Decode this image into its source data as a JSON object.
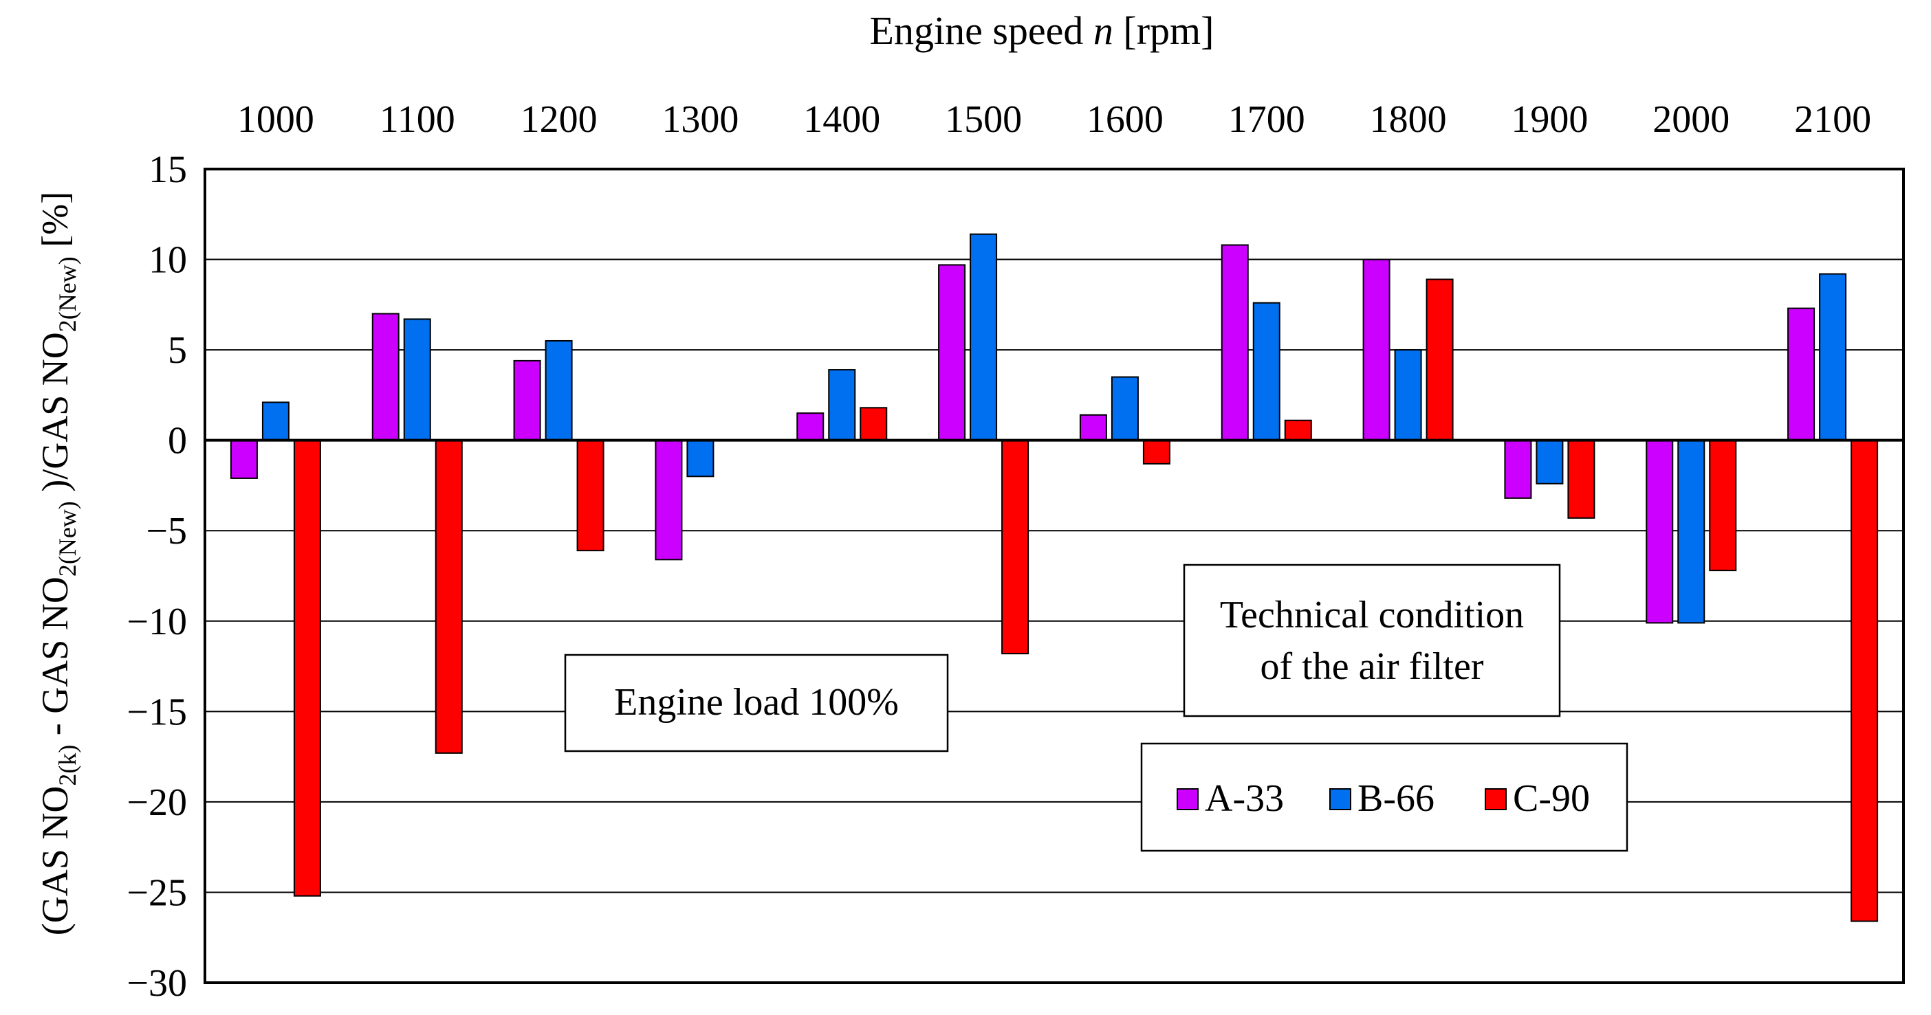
{
  "chart_data": {
    "type": "bar",
    "title": "",
    "xlabel_prefix": "Engine speed ",
    "xlabel_var": "n",
    "xlabel_suffix": " [rpm]",
    "ylabel_parts": [
      "(GAS NO",
      "2(k)",
      " - GAS NO",
      "2(New)",
      " )/GAS NO",
      "2(New)",
      " [%]"
    ],
    "categories": [
      "1000",
      "1100",
      "1200",
      "1300",
      "1400",
      "1500",
      "1600",
      "1700",
      "1800",
      "1900",
      "2000",
      "2100"
    ],
    "series": [
      {
        "name": "A-33",
        "color": "#CC00FF",
        "values": [
          -2.1,
          7.0,
          4.4,
          -6.6,
          1.5,
          9.7,
          1.4,
          10.8,
          10.0,
          -3.2,
          -10.1,
          7.3
        ]
      },
      {
        "name": "B-66",
        "color": "#0070F0",
        "values": [
          2.1,
          6.7,
          5.5,
          -2.0,
          3.9,
          11.4,
          3.5,
          7.6,
          5.0,
          -2.4,
          -10.1,
          9.2
        ]
      },
      {
        "name": "C-90",
        "color": "#FF0000",
        "values": [
          -25.2,
          -17.3,
          -6.1,
          0.0,
          1.8,
          -11.8,
          -1.3,
          1.1,
          8.9,
          -4.3,
          -7.2,
          -26.6
        ]
      }
    ],
    "ylim": [
      -30,
      15
    ],
    "yticks": [
      15,
      10,
      5,
      0,
      -5,
      -10,
      -15,
      -20,
      -25,
      -30
    ],
    "ytick_labels": [
      "15",
      "10",
      "5",
      "0",
      "−5",
      "−10",
      "−15",
      "−20",
      "−25",
      "−30"
    ],
    "grid": true,
    "annotations": {
      "load_box": "Engine load 100%",
      "filter_box_line1": "Technical condition",
      "filter_box_line2": "of the air filter"
    },
    "legend": {
      "placement": "lower-right",
      "entries": [
        "A-33",
        "B-66",
        "C-90"
      ]
    }
  }
}
